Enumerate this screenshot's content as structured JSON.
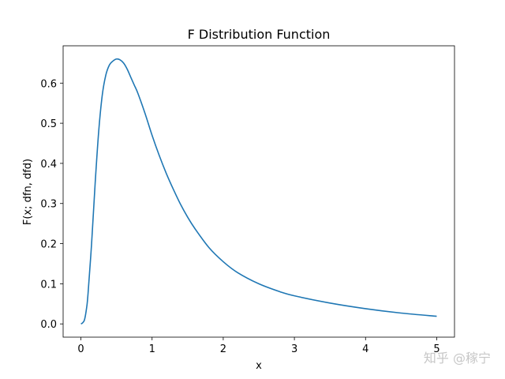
{
  "chart_data": {
    "type": "line",
    "title": "F Distribution Function",
    "xlabel": "x",
    "ylabel": "F(x; dfn, dfd)",
    "xlim": [
      -0.25,
      5.25
    ],
    "ylim": [
      -0.033,
      0.693
    ],
    "x_ticks": [
      0,
      1,
      2,
      3,
      4,
      5
    ],
    "y_ticks": [
      0.0,
      0.1,
      0.2,
      0.3,
      0.4,
      0.5,
      0.6
    ],
    "y_tick_labels": [
      "0.0",
      "0.1",
      "0.2",
      "0.3",
      "0.4",
      "0.5",
      "0.6"
    ],
    "grid": false,
    "legend": "none",
    "series": [
      {
        "color": "#1f77b4",
        "x": [
          0.0,
          0.02,
          0.05,
          0.08,
          0.1,
          0.15,
          0.2,
          0.25,
          0.3,
          0.35,
          0.4,
          0.45,
          0.5,
          0.55,
          0.6,
          0.65,
          0.7,
          0.75,
          0.8,
          0.9,
          1.0,
          1.1,
          1.2,
          1.3,
          1.4,
          1.5,
          1.6,
          1.8,
          2.0,
          2.2,
          2.5,
          2.8,
          3.0,
          3.5,
          4.0,
          4.5,
          5.0
        ],
        "values": [
          0.0,
          0.002,
          0.01,
          0.04,
          0.075,
          0.2,
          0.35,
          0.48,
          0.57,
          0.62,
          0.645,
          0.655,
          0.66,
          0.658,
          0.65,
          0.635,
          0.615,
          0.595,
          0.575,
          0.525,
          0.47,
          0.42,
          0.375,
          0.335,
          0.298,
          0.266,
          0.238,
          0.19,
          0.155,
          0.128,
          0.1,
          0.08,
          0.07,
          0.052,
          0.038,
          0.027,
          0.019
        ]
      }
    ]
  },
  "watermark": "知乎 @稼宁"
}
